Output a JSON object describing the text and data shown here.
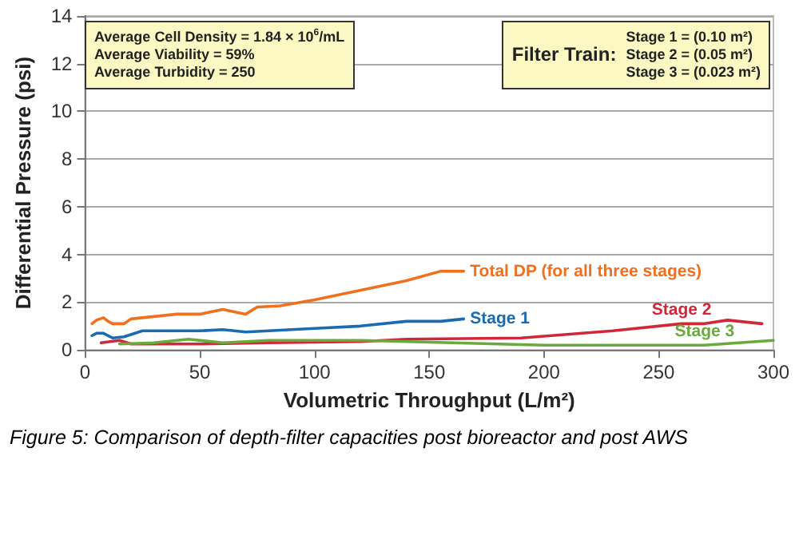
{
  "chart_data": {
    "type": "line",
    "xlabel": "Volumetric Throughput (L/m²)",
    "ylabel": "Differential Pressure (psi)",
    "xlim": [
      0,
      300
    ],
    "xticks": [
      0,
      50,
      100,
      150,
      200,
      250,
      300
    ],
    "ylim": [
      0,
      14
    ],
    "yticks": [
      0,
      2,
      4,
      6,
      8,
      10,
      12,
      14
    ],
    "grid": "y",
    "legend": false,
    "marker": "none",
    "line_style": "solid",
    "series": [
      {
        "name": "Total DP (for all three stages)",
        "color": "#f07020",
        "x": [
          3,
          5,
          8,
          10,
          12,
          17,
          20,
          30,
          40,
          50,
          60,
          70,
          75,
          85,
          100,
          120,
          140,
          155,
          165
        ],
        "values": [
          1.1,
          1.25,
          1.35,
          1.2,
          1.1,
          1.1,
          1.3,
          1.4,
          1.5,
          1.5,
          1.7,
          1.5,
          1.8,
          1.85,
          2.1,
          2.5,
          2.9,
          3.3,
          3.3
        ]
      },
      {
        "name": "Stage 1",
        "color": "#1a6bb0",
        "x": [
          3,
          5,
          8,
          12,
          17,
          25,
          50,
          60,
          70,
          80,
          100,
          120,
          140,
          155,
          165
        ],
        "values": [
          0.6,
          0.7,
          0.7,
          0.5,
          0.55,
          0.8,
          0.8,
          0.85,
          0.75,
          0.8,
          0.9,
          1.0,
          1.2,
          1.2,
          1.3
        ]
      },
      {
        "name": "Stage 2",
        "color": "#d0283a",
        "x": [
          7,
          15,
          20,
          50,
          80,
          120,
          140,
          190,
          230,
          260,
          270,
          280,
          295
        ],
        "values": [
          0.3,
          0.4,
          0.25,
          0.25,
          0.3,
          0.35,
          0.45,
          0.5,
          0.8,
          1.1,
          1.1,
          1.25,
          1.1
        ]
      },
      {
        "name": "Stage 3",
        "color": "#6aaa3a",
        "x": [
          15,
          30,
          45,
          60,
          80,
          120,
          140,
          200,
          270,
          300
        ],
        "values": [
          0.25,
          0.3,
          0.45,
          0.3,
          0.4,
          0.4,
          0.35,
          0.2,
          0.2,
          0.4
        ]
      }
    ],
    "annotations": [
      "Average Cell Density = 1.84 × 10$^{6}$/mL\nAverage Viability = 59%\nAverage Turbidity = 250",
      "Filter Train:",
      "Stage 1 = (0.10 m²)\nStage 2 = (0.05 m²)\nStage 3 = (0.023 m²)",
      "Figure 5: Comparison of depth-filter capacities post bioreactor and post AWS"
    ]
  }
}
